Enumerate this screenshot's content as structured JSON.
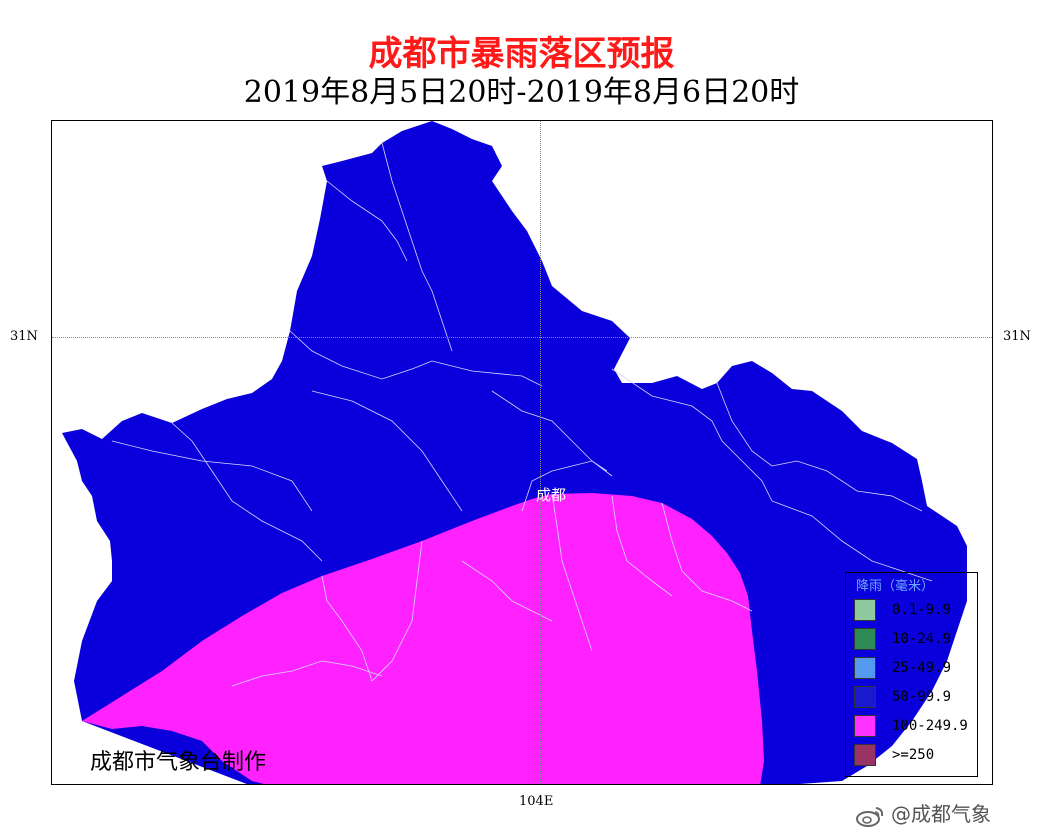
{
  "title": {
    "main": "成都市暴雨落区预报",
    "sub": "2019年8月5日20时-2019年8月6日20时",
    "main_color": "#ff1a1a"
  },
  "axes": {
    "lat_label_left": "31N",
    "lat_label_right": "31N",
    "lon_label_bottom": "104E"
  },
  "map": {
    "city_label": "成都",
    "maker": "成都市气象台制作",
    "colors": {
      "region_blue": "#0a00dc",
      "region_magenta": "#ff22ff",
      "boundary": "#d8d8ff"
    }
  },
  "legend": {
    "title": "降雨（毫米）",
    "items": [
      {
        "label": "0.1-9.9",
        "color": "#8fc9a0"
      },
      {
        "label": "10-24.9",
        "color": "#2e8b57"
      },
      {
        "label": "25-49.9",
        "color": "#5599ee"
      },
      {
        "label": "50-99.9",
        "color": "#1a1acc"
      },
      {
        "label": "100-249.9",
        "color": "#ff33ff"
      },
      {
        "label": ">=250",
        "color": "#993366"
      }
    ]
  },
  "watermark": {
    "text": "@成都气象",
    "icon": "weibo-icon"
  }
}
